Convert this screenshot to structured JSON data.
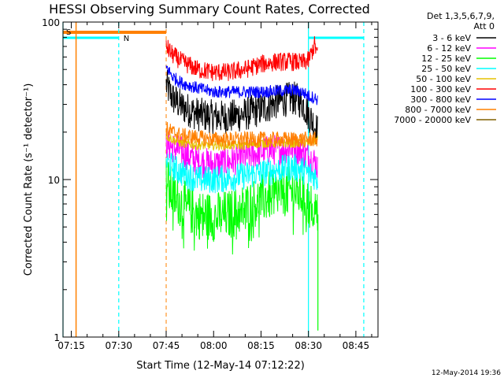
{
  "chart_data": {
    "type": "line",
    "title": "HESSI Observing Summary Count Rates, Corrected",
    "xlabel": "Start Time (12-May-14 07:12:22)",
    "ylabel": "Corrected Count Rate (s⁻¹ detector⁻¹)",
    "y_scale": "log",
    "xlim": [
      "07:12:22",
      "08:52:00"
    ],
    "ylim": [
      1,
      100
    ],
    "x_ticks": [
      "07:15",
      "07:30",
      "07:45",
      "08:00",
      "08:15",
      "08:30",
      "08:45"
    ],
    "y_ticks": [
      1,
      10,
      100
    ],
    "y_tick_labels": [
      "1",
      "10",
      "100"
    ],
    "grid": false,
    "legend_position": "top-right",
    "legend_header": [
      "Det 1,3,5,6,7,9,",
      "Att 0"
    ],
    "footer_date": "12-May-2014 19:36",
    "flag_labels": {
      "saa": "S",
      "night": "N"
    },
    "flags": {
      "saa": {
        "color": "#ff8000",
        "start": "07:12:22",
        "end": "07:45:00",
        "edge_lines": [
          "07:16:30",
          "07:45:00"
        ]
      },
      "night": {
        "color": "#00ffff",
        "segments": [
          [
            "07:12:22",
            "07:30:00"
          ],
          [
            "08:30:00",
            "08:47:30"
          ]
        ],
        "edge_lines": [
          "07:12:22",
          "07:30:00",
          "08:30:00",
          "08:47:30"
        ]
      }
    },
    "series": [
      {
        "name": "3 - 6 keV",
        "color": "#000000",
        "x": [
          "07:45",
          "07:47",
          "07:50",
          "07:55",
          "08:00",
          "08:05",
          "08:10",
          "08:15",
          "08:20",
          "08:25",
          "08:28",
          "08:30",
          "08:32",
          "08:33"
        ],
        "values": [
          40,
          33,
          29,
          26,
          25,
          25,
          26,
          28,
          31,
          33,
          31,
          26,
          22,
          20
        ]
      },
      {
        "name": "6 - 12 keV",
        "color": "#ff00ff",
        "x": [
          "07:45",
          "07:47",
          "07:50",
          "07:55",
          "08:00",
          "08:05",
          "08:10",
          "08:15",
          "08:20",
          "08:25",
          "08:28",
          "08:30",
          "08:32",
          "08:33"
        ],
        "values": [
          17,
          16,
          15,
          13,
          12.5,
          13,
          14,
          15,
          15.5,
          16,
          15,
          14,
          13,
          12
        ]
      },
      {
        "name": "12 - 25 keV",
        "color": "#00ff00",
        "x": [
          "07:45",
          "07:47",
          "07:50",
          "07:55",
          "08:00",
          "08:05",
          "08:10",
          "08:15",
          "08:20",
          "08:25",
          "08:28",
          "08:30",
          "08:32",
          "08:33"
        ],
        "values": [
          10,
          8,
          7,
          6,
          5.8,
          6,
          6.6,
          7.5,
          8.2,
          8.5,
          8,
          7,
          6.5,
          6
        ]
      },
      {
        "name": "25 - 50 keV",
        "color": "#00ffff",
        "x": [
          "07:45",
          "07:47",
          "07:50",
          "07:55",
          "08:00",
          "08:05",
          "08:10",
          "08:15",
          "08:20",
          "08:25",
          "08:28",
          "08:30",
          "08:32",
          "08:33"
        ],
        "values": [
          13,
          12,
          11,
          10,
          10,
          10.2,
          10.6,
          11,
          11.5,
          12,
          11.5,
          11,
          10.5,
          10
        ]
      },
      {
        "name": "50 - 100 keV",
        "color": "#e6c200",
        "x": [
          "07:45",
          "07:47",
          "07:50",
          "07:55",
          "08:00",
          "08:05",
          "08:10",
          "08:15",
          "08:20",
          "08:25",
          "08:28",
          "08:30",
          "08:32",
          "08:33"
        ],
        "values": [
          19,
          18,
          17,
          16.5,
          16.5,
          16.5,
          16.5,
          17,
          17,
          17,
          17,
          17,
          17.5,
          18
        ]
      },
      {
        "name": "100 - 300 keV",
        "color": "#ff0000",
        "x": [
          "07:45",
          "07:47",
          "07:50",
          "07:55",
          "08:00",
          "08:05",
          "08:10",
          "08:15",
          "08:20",
          "08:25",
          "08:28",
          "08:30",
          "08:32",
          "08:33"
        ],
        "values": [
          70,
          62,
          56,
          50,
          48,
          48,
          50,
          54,
          56,
          56,
          55,
          57,
          72,
          60
        ]
      },
      {
        "name": "300 - 800 keV",
        "color": "#0000ff",
        "x": [
          "07:45",
          "07:47",
          "07:50",
          "07:55",
          "08:00",
          "08:05",
          "08:10",
          "08:15",
          "08:20",
          "08:25",
          "08:28",
          "08:30",
          "08:32",
          "08:33"
        ],
        "values": [
          52,
          45,
          41,
          38,
          36,
          36,
          36,
          36,
          36.5,
          37,
          36,
          34,
          33,
          32
        ]
      },
      {
        "name": "800 - 7000 keV",
        "color": "#ff8000",
        "x": [
          "07:45",
          "07:47",
          "07:50",
          "07:55",
          "08:00",
          "08:05",
          "08:10",
          "08:15",
          "08:20",
          "08:25",
          "08:28",
          "08:30",
          "08:32",
          "08:33"
        ],
        "values": [
          21,
          20,
          19,
          18.5,
          18,
          18,
          18,
          18,
          18,
          18,
          18,
          18,
          18,
          18
        ]
      },
      {
        "name": "7000 - 20000 keV",
        "color": "#806000",
        "x": [],
        "values": []
      }
    ]
  }
}
